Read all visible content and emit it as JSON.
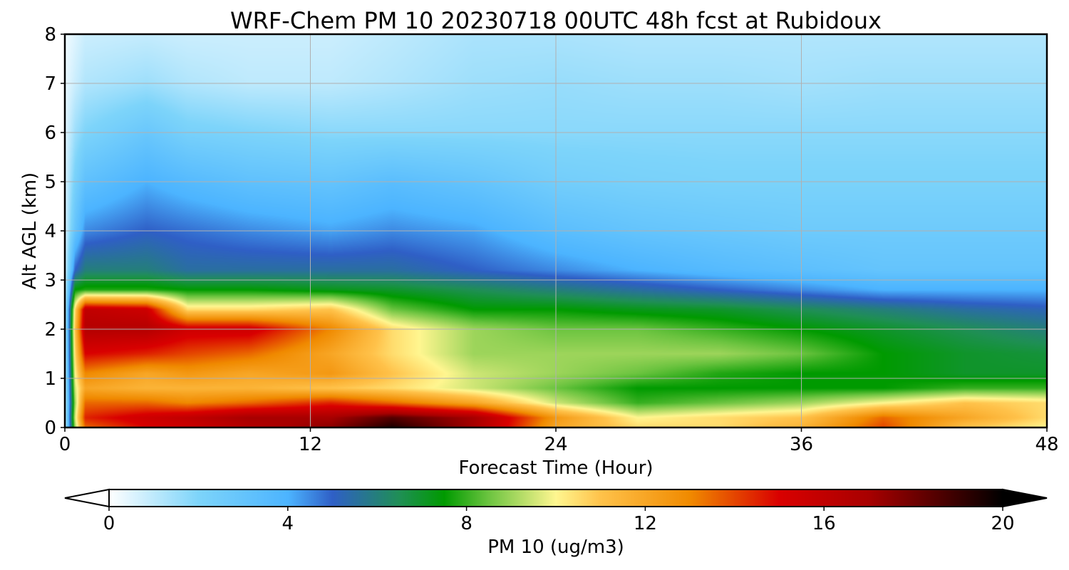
{
  "chart_data": {
    "type": "heatmap",
    "title": "WRF-Chem PM 10  20230718 00UTC 48h fcst at Rubidoux",
    "xlabel": "Forecast Time (Hour)",
    "ylabel": "Alt AGL (km)",
    "xlim": [
      0,
      48
    ],
    "ylim": [
      0,
      8
    ],
    "x_ticks": [
      "0",
      "12",
      "24",
      "36",
      "48"
    ],
    "y_ticks": [
      "0",
      "1",
      "2",
      "3",
      "4",
      "5",
      "6",
      "7",
      "8"
    ],
    "grid": true,
    "x_hours": [
      0,
      0.5,
      1,
      4,
      6,
      9,
      13,
      16,
      20,
      24,
      28,
      32,
      36,
      40,
      44,
      48
    ],
    "y_km": [
      0,
      0.2,
      0.5,
      0.8,
      1.1,
      1.5,
      2,
      2.4,
      2.8,
      3.2,
      4,
      5,
      6,
      7,
      8
    ],
    "values": [
      [
        0.5,
        9.0,
        13.5,
        15.0,
        15.5,
        16.5,
        17.5,
        19.5,
        17.0,
        12.0,
        10.5,
        10.5,
        11.5,
        14.0,
        11.0,
        10.0
      ],
      [
        0.5,
        9.5,
        14.5,
        15.5,
        16.0,
        17.0,
        17.0,
        18.5,
        17.0,
        12.5,
        10.0,
        10.5,
        11.0,
        13.5,
        12.0,
        10.5
      ],
      [
        0.5,
        9.0,
        13.5,
        13.5,
        13.0,
        13.5,
        14.5,
        13.5,
        12.0,
        9.5,
        8.0,
        8.5,
        9.0,
        10.0,
        11.0,
        10.5
      ],
      [
        0.5,
        9.5,
        12.0,
        11.5,
        11.5,
        11.5,
        11.0,
        10.5,
        9.5,
        8.5,
        7.5,
        7.5,
        7.5,
        7.5,
        8.0,
        8.0
      ],
      [
        0.5,
        10.0,
        13.0,
        12.0,
        12.5,
        12.0,
        12.5,
        11.0,
        9.5,
        9.0,
        8.5,
        7.8,
        7.5,
        7.5,
        7.0,
        7.0
      ],
      [
        0.5,
        10.5,
        15.0,
        14.5,
        14.0,
        13.5,
        12.0,
        10.5,
        9.0,
        9.0,
        9.0,
        9.0,
        8.5,
        7.5,
        7.0,
        6.8
      ],
      [
        0.5,
        11.0,
        16.5,
        16.5,
        15.5,
        15.5,
        13.0,
        10.5,
        9.0,
        8.5,
        8.5,
        8.0,
        7.5,
        7.0,
        6.5,
        6.0
      ],
      [
        0.5,
        10.5,
        16.0,
        15.5,
        10.5,
        10.5,
        11.0,
        8.5,
        7.5,
        7.5,
        7.2,
        7.0,
        6.5,
        6.0,
        5.5,
        5.2
      ],
      [
        0.5,
        7.5,
        7.8,
        7.8,
        7.5,
        7.5,
        7.2,
        7.0,
        6.5,
        6.0,
        5.5,
        5.0,
        4.5,
        4.0,
        4.0,
        4.0
      ],
      [
        0.5,
        5.0,
        6.0,
        6.0,
        5.5,
        5.5,
        5.5,
        5.5,
        5.0,
        4.5,
        4.0,
        3.6,
        3.3,
        3.0,
        3.0,
        3.0
      ],
      [
        0.5,
        3.0,
        4.5,
        5.0,
        4.8,
        4.5,
        4.2,
        4.5,
        4.2,
        3.4,
        3.0,
        2.8,
        2.6,
        2.6,
        2.6,
        2.6
      ],
      [
        0.5,
        2.2,
        3.2,
        4.0,
        3.6,
        3.2,
        3.0,
        3.4,
        3.0,
        2.4,
        2.2,
        2.1,
        2.1,
        2.1,
        2.1,
        2.1
      ],
      [
        0.4,
        1.5,
        2.0,
        2.8,
        2.2,
        2.0,
        1.8,
        1.8,
        1.8,
        1.8,
        1.8,
        1.8,
        1.8,
        1.8,
        1.8,
        1.8
      ],
      [
        0.3,
        0.8,
        1.2,
        1.5,
        1.2,
        1.0,
        1.0,
        1.2,
        1.5,
        1.6,
        1.5,
        1.5,
        1.4,
        1.5,
        1.5,
        1.5
      ],
      [
        0.2,
        0.5,
        0.8,
        0.9,
        0.8,
        0.8,
        0.8,
        1.0,
        1.3,
        1.3,
        1.2,
        1.2,
        1.2,
        1.2,
        1.2,
        1.2
      ]
    ],
    "colorbar": {
      "label": "PM 10  (ug/m3)",
      "min": 0,
      "max": 20,
      "ticks": [
        "0",
        "4",
        "8",
        "12",
        "16",
        "20"
      ],
      "extend": "both",
      "stops": [
        {
          "v": 0,
          "c": "#ffffff"
        },
        {
          "v": 2,
          "c": "#7dd4fa"
        },
        {
          "v": 4,
          "c": "#4cb4ff"
        },
        {
          "v": 5,
          "c": "#2f5fc6"
        },
        {
          "v": 6.5,
          "c": "#1f8f55"
        },
        {
          "v": 7.5,
          "c": "#009a00"
        },
        {
          "v": 8.5,
          "c": "#6cc440"
        },
        {
          "v": 10,
          "c": "#fff690"
        },
        {
          "v": 11,
          "c": "#ffc24a"
        },
        {
          "v": 13,
          "c": "#f08a00"
        },
        {
          "v": 15,
          "c": "#d90000"
        },
        {
          "v": 17,
          "c": "#a80000"
        },
        {
          "v": 20,
          "c": "#000000"
        }
      ]
    }
  }
}
